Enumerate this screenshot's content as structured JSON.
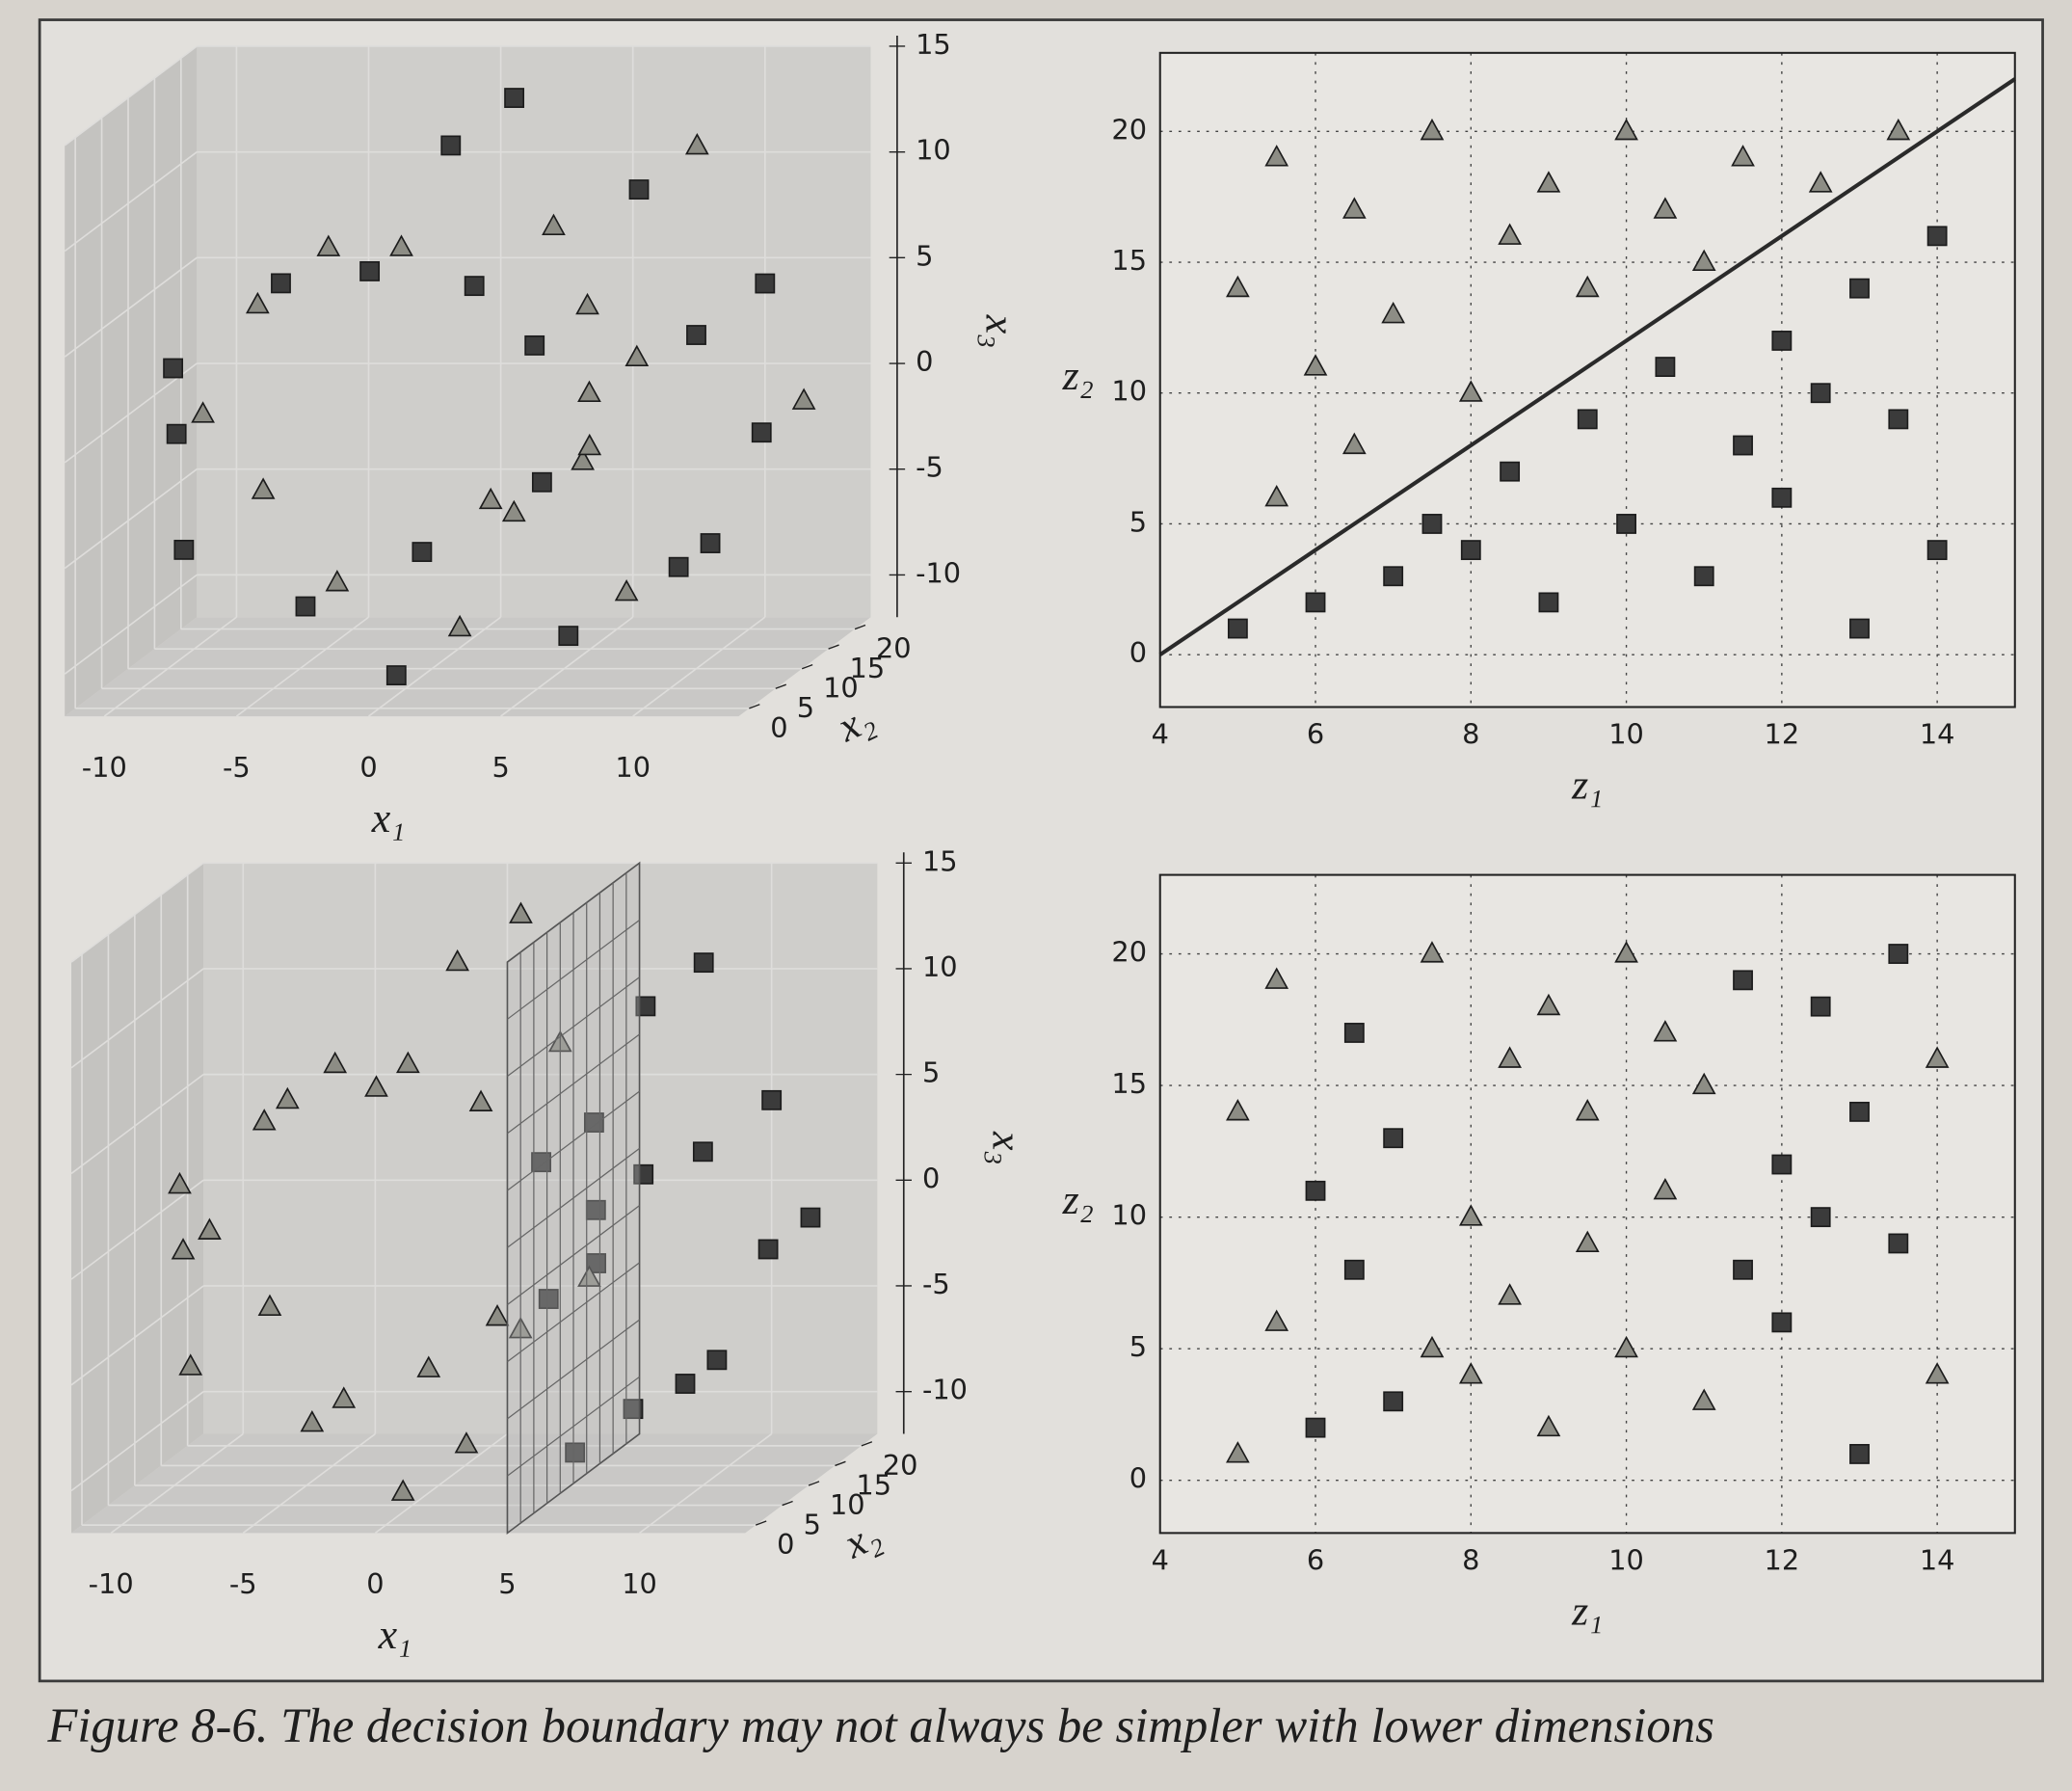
{
  "chart_data": [
    {
      "type": "scatter3d",
      "xlabel": "x₁",
      "ylabel": "x₂",
      "zlabel": "x₃",
      "xlim": [
        -11.5,
        14
      ],
      "ylim": [
        -2,
        23
      ],
      "zlim": [
        -12,
        15
      ],
      "xticks": [
        -10,
        -5,
        0,
        5,
        10
      ],
      "yticks": [
        0,
        5,
        10,
        15,
        20
      ],
      "zticks": [
        -10,
        -5,
        0,
        5,
        10,
        15
      ],
      "series": [
        {
          "marker": "square",
          "color": "#3b3b3b",
          "x": [
            1.42,
            5.76,
            5.28,
            2.6,
            -1.16,
            -5.12,
            -8.2,
            -9.47,
            -8.39,
            -4.99,
            0.05,
            5.56,
            10.13,
            10.13,
            12.47,
            11.8,
            11.8,
            8.03,
            1.91,
            1.91
          ],
          "y": [
            1,
            2,
            3,
            5,
            4,
            7,
            2,
            9,
            5,
            11,
            3,
            8,
            6,
            12,
            10,
            1,
            14,
            9,
            4,
            16
          ],
          "z": [
            -4.79,
            -1.68,
            4.6,
            7.04,
            7.92,
            6.79,
            3.71,
            -0.71,
            -5.44,
            -9.24,
            -11.0,
            -10.07,
            -6.44,
            -6.44,
            -0.83,
            5.47,
            5.47,
            10.85,
            13.87,
            13.87
          ]
        },
        {
          "marker": "triangle",
          "color": "#8d8d85",
          "x": [
            1.42,
            3.9,
            3.9,
            5.76,
            6.35,
            6.35,
            5.28,
            2.6,
            -1.16,
            -5.12,
            -8.2,
            -9.47,
            -8.39,
            -4.99,
            0.05,
            5.56,
            12.47,
            8.03
          ],
          "y": [
            14,
            6,
            19,
            11,
            8,
            17,
            13,
            20,
            10,
            16,
            18,
            14,
            20,
            17,
            15,
            19,
            18,
            20
          ],
          "z": [
            -4.79,
            -3.88,
            -3.88,
            -1.68,
            1.4,
            1.4,
            4.6,
            7.04,
            7.92,
            6.79,
            3.71,
            -0.71,
            -5.44,
            -9.24,
            -11.0,
            -10.07,
            -0.83,
            10.85
          ]
        }
      ]
    },
    {
      "type": "scatter",
      "xlabel": "z₁",
      "ylabel": "z₂",
      "xlim": [
        4,
        15
      ],
      "ylim": [
        -2,
        23
      ],
      "xticks": [
        4,
        6,
        8,
        10,
        12,
        14
      ],
      "yticks": [
        0,
        5,
        10,
        15,
        20
      ],
      "grid": true,
      "line": {
        "x": [
          4,
          15
        ],
        "y": [
          0,
          22
        ],
        "color": "#2a2a2a"
      },
      "series": [
        {
          "marker": "square",
          "color": "#3b3b3b",
          "x": [
            5,
            6,
            7,
            7.5,
            8,
            8.5,
            9,
            9.5,
            10,
            10.5,
            11,
            11.5,
            12,
            12,
            12.5,
            13,
            13,
            13.5,
            14,
            14
          ],
          "y": [
            1,
            2,
            3,
            5,
            4,
            7,
            2,
            9,
            5,
            11,
            3,
            8,
            6,
            12,
            10,
            1,
            14,
            9,
            4,
            16
          ]
        },
        {
          "marker": "triangle",
          "color": "#8d8d85",
          "x": [
            5,
            5.5,
            5.5,
            6,
            6.5,
            6.5,
            7,
            7.5,
            8,
            8.5,
            9,
            9.5,
            10,
            10.5,
            11,
            11.5,
            12.5,
            13.5
          ],
          "y": [
            14,
            6,
            19,
            11,
            8,
            17,
            13,
            20,
            10,
            16,
            18,
            14,
            20,
            17,
            15,
            19,
            18,
            20
          ]
        }
      ]
    },
    {
      "type": "scatter3d",
      "xlabel": "x₁",
      "ylabel": "x₂",
      "zlabel": "x₃",
      "xlim": [
        -11.5,
        14
      ],
      "ylim": [
        -2,
        23
      ],
      "zlim": [
        -12,
        15
      ],
      "xticks": [
        -10,
        -5,
        0,
        5,
        10
      ],
      "yticks": [
        0,
        5,
        10,
        15,
        20
      ],
      "zticks": [
        -10,
        -5,
        0,
        5,
        10,
        15
      ],
      "plane_x": 5,
      "series": [
        {
          "marker": "square",
          "color": "#3b3b3b",
          "x": [
            5.76,
            5.76,
            6.35,
            6.35,
            5.28,
            5.28,
            5.56,
            5.56,
            10.13,
            10.13,
            12.47,
            12.47,
            11.8,
            11.8,
            8.03,
            8.03
          ],
          "y": [
            2,
            11,
            8,
            17,
            3,
            13,
            8,
            19,
            6,
            12,
            10,
            18,
            1,
            14,
            9,
            20
          ],
          "z": [
            -1.68,
            -1.68,
            1.4,
            1.4,
            4.6,
            4.6,
            -10.07,
            -10.07,
            -6.44,
            -6.44,
            -0.83,
            -0.83,
            5.47,
            5.47,
            10.85,
            10.85
          ]
        },
        {
          "marker": "triangle",
          "color": "#8d8d85",
          "x": [
            1.42,
            1.42,
            3.9,
            3.9,
            2.6,
            2.6,
            -1.16,
            -1.16,
            -5.12,
            -5.12,
            -8.2,
            -8.2,
            -9.47,
            -9.47,
            -8.39,
            -8.39,
            -4.99,
            -4.99,
            0.05,
            0.05,
            1.91,
            1.91
          ],
          "y": [
            1,
            14,
            6,
            19,
            5,
            20,
            4,
            10,
            7,
            16,
            2,
            18,
            9,
            14,
            5,
            20,
            11,
            17,
            3,
            15,
            4,
            16
          ],
          "z": [
            -4.79,
            -4.79,
            -3.88,
            -3.88,
            7.04,
            7.04,
            7.92,
            7.92,
            6.79,
            6.79,
            3.71,
            3.71,
            -0.71,
            -0.71,
            -5.44,
            -5.44,
            -9.24,
            -9.24,
            -11.0,
            -11.0,
            13.87,
            13.87
          ]
        }
      ]
    },
    {
      "type": "scatter",
      "xlabel": "z₁",
      "ylabel": "z₂",
      "xlim": [
        4,
        15
      ],
      "ylim": [
        -2,
        23
      ],
      "xticks": [
        4,
        6,
        8,
        10,
        12,
        14
      ],
      "yticks": [
        0,
        5,
        10,
        15,
        20
      ],
      "grid": true,
      "series": [
        {
          "marker": "square",
          "color": "#3b3b3b",
          "x": [
            6,
            6,
            6.5,
            6.5,
            7,
            7,
            11.5,
            11.5,
            12,
            12,
            12.5,
            12.5,
            13,
            13,
            13.5,
            13.5
          ],
          "y": [
            2,
            11,
            8,
            17,
            3,
            13,
            8,
            19,
            6,
            12,
            10,
            18,
            1,
            14,
            9,
            20
          ]
        },
        {
          "marker": "triangle",
          "color": "#8d8d85",
          "x": [
            5,
            5,
            5.5,
            5.5,
            7.5,
            7.5,
            8,
            8,
            8.5,
            8.5,
            9,
            9,
            9.5,
            9.5,
            10,
            10,
            10.5,
            10.5,
            11,
            11,
            14,
            14
          ],
          "y": [
            1,
            14,
            6,
            19,
            5,
            20,
            4,
            10,
            7,
            16,
            2,
            18,
            9,
            14,
            5,
            20,
            11,
            17,
            3,
            15,
            4,
            16
          ]
        }
      ]
    }
  ],
  "caption": "Figure 8-6. The decision boundary may not always be simpler with lower dimensions"
}
